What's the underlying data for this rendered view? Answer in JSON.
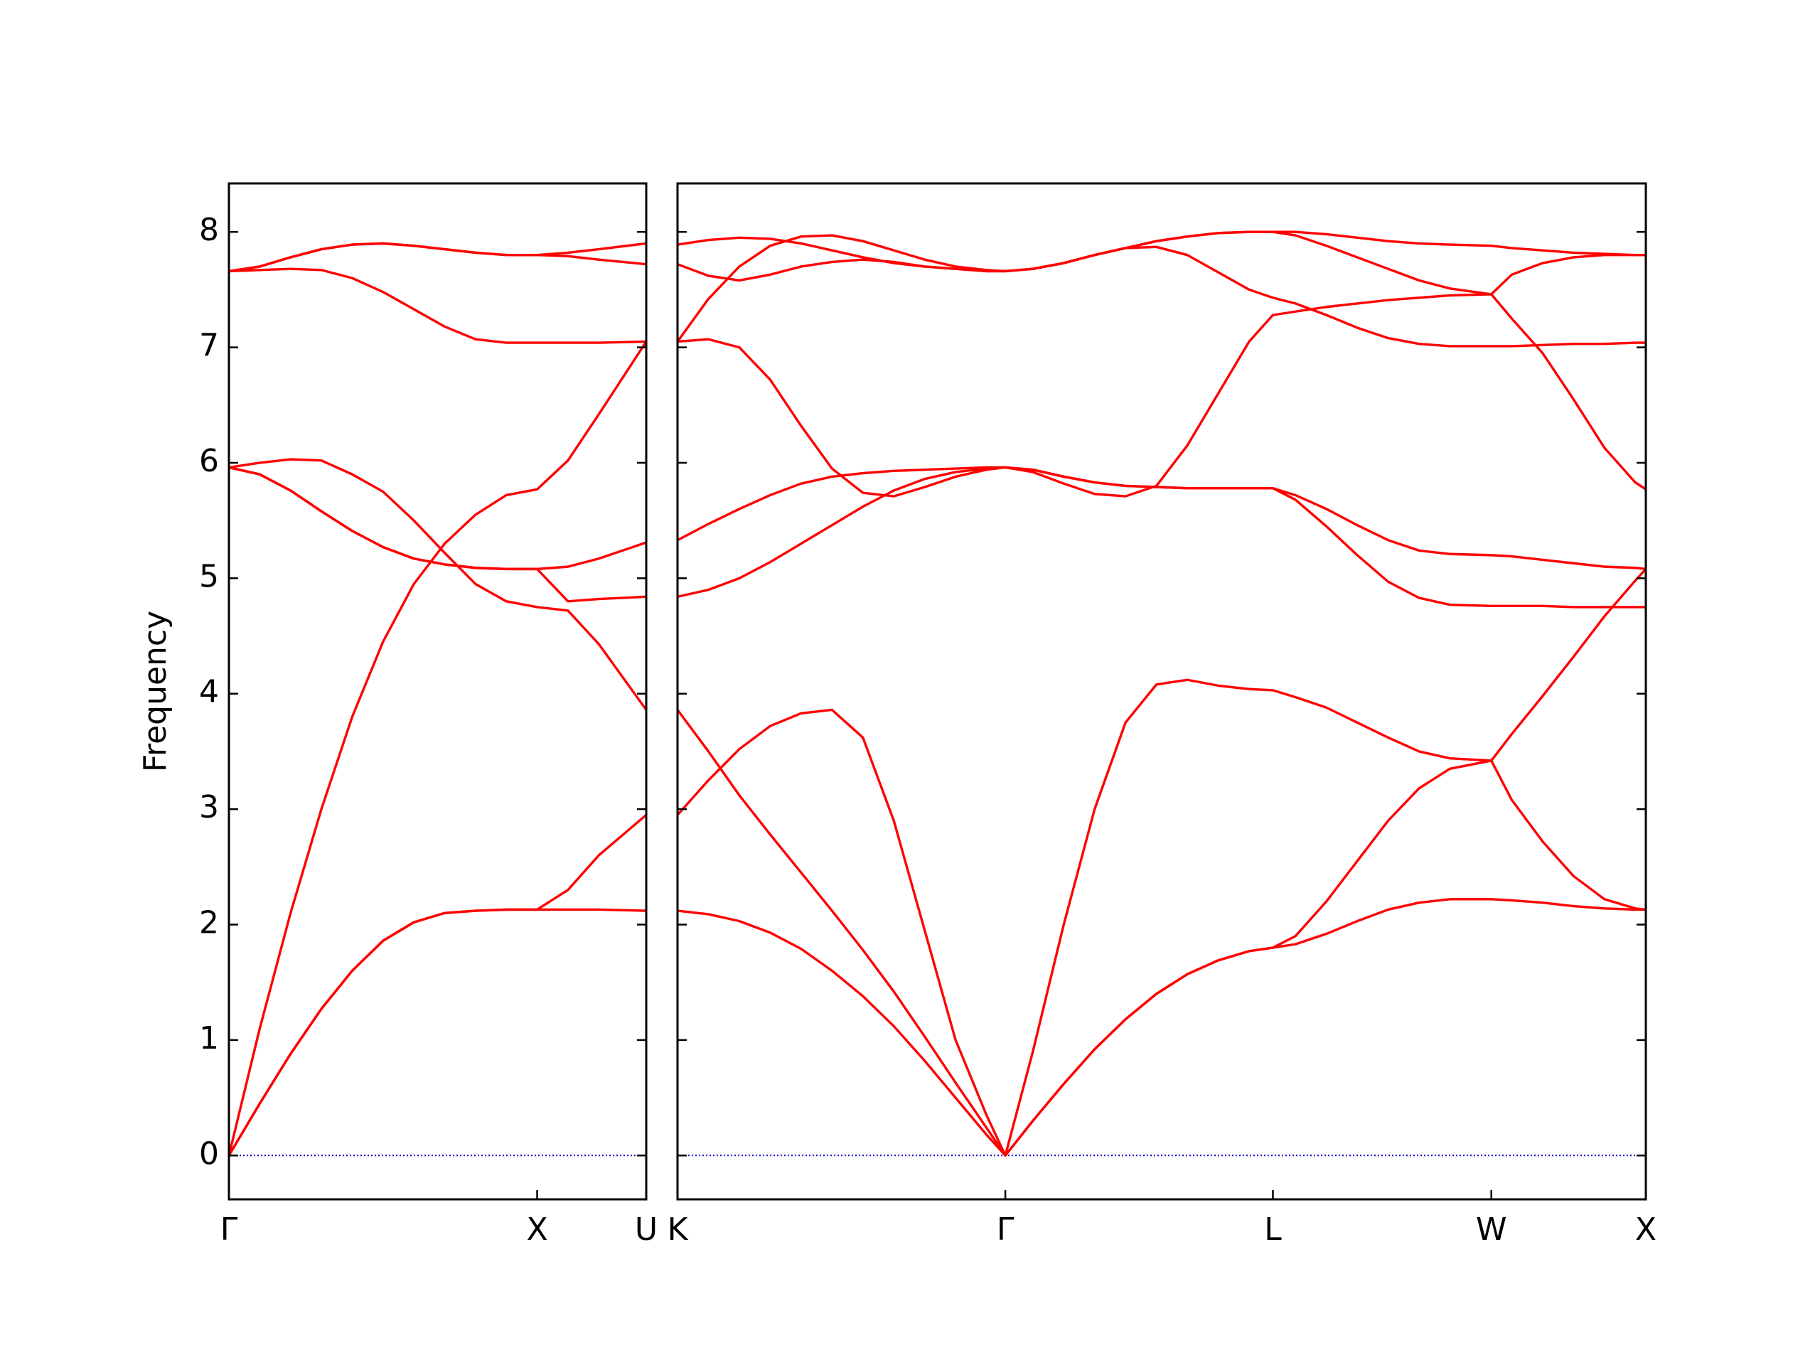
{
  "chart_data": [
    {
      "type": "line",
      "y_label": "Frequency",
      "color": "#ff0000",
      "xlim": [
        0,
        1.354
      ],
      "xticks": [
        {
          "value": 0,
          "label": "Γ"
        },
        {
          "value": 1,
          "label": "X"
        },
        {
          "value": 1.354,
          "label": "U"
        }
      ],
      "ylim": [
        -0.38,
        8.42
      ],
      "yticks": [
        0,
        1,
        2,
        3,
        4,
        5,
        6,
        7,
        8
      ],
      "ytick_labels": true,
      "hline": {
        "value": 0,
        "color": "#0000cc"
      },
      "x": [
        0,
        0.1,
        0.2,
        0.3,
        0.4,
        0.5,
        0.6,
        0.7,
        0.8,
        0.9,
        1.0,
        1.1,
        1.2,
        1.354
      ],
      "series": [
        {
          "values": [
            0,
            0.45,
            0.88,
            1.27,
            1.6,
            1.86,
            2.02,
            2.1,
            2.12,
            2.13,
            2.13,
            2.13,
            2.13,
            2.12
          ]
        },
        {
          "values": [
            0,
            0.45,
            0.88,
            1.27,
            1.6,
            1.86,
            2.02,
            2.1,
            2.12,
            2.13,
            2.13,
            2.3,
            2.6,
            2.95
          ]
        },
        {
          "values": [
            0,
            1.1,
            2.1,
            3.0,
            3.8,
            4.45,
            4.95,
            5.3,
            5.55,
            5.72,
            5.77,
            6.02,
            6.42,
            7.05
          ]
        },
        {
          "values": [
            5.96,
            6.0,
            6.03,
            6.02,
            5.9,
            5.75,
            5.5,
            5.22,
            4.95,
            4.8,
            4.75,
            4.72,
            4.43,
            3.86
          ]
        },
        {
          "values": [
            5.96,
            5.9,
            5.76,
            5.58,
            5.41,
            5.27,
            5.17,
            5.12,
            5.09,
            5.08,
            5.08,
            4.8,
            4.82,
            4.84
          ]
        },
        {
          "values": [
            5.96,
            5.9,
            5.76,
            5.58,
            5.41,
            5.27,
            5.17,
            5.12,
            5.09,
            5.08,
            5.08,
            5.1,
            5.17,
            5.31
          ]
        },
        {
          "values": [
            7.66,
            7.67,
            7.68,
            7.67,
            7.6,
            7.48,
            7.33,
            7.18,
            7.07,
            7.04,
            7.04,
            7.04,
            7.04,
            7.05
          ]
        },
        {
          "values": [
            7.66,
            7.7,
            7.78,
            7.85,
            7.89,
            7.9,
            7.88,
            7.85,
            7.82,
            7.8,
            7.8,
            7.82,
            7.85,
            7.9
          ]
        },
        {
          "values": [
            7.66,
            7.7,
            7.78,
            7.85,
            7.89,
            7.9,
            7.88,
            7.85,
            7.82,
            7.8,
            7.8,
            7.79,
            7.76,
            7.72
          ]
        }
      ]
    },
    {
      "type": "line",
      "color": "#ff0000",
      "xlim": [
        0,
        3.134
      ],
      "xticks": [
        {
          "value": 0,
          "label": "K"
        },
        {
          "value": 1.061,
          "label": "Γ"
        },
        {
          "value": 1.927,
          "label": "L"
        },
        {
          "value": 2.634,
          "label": "W"
        },
        {
          "value": 3.134,
          "label": "X"
        }
      ],
      "ylim": [
        -0.38,
        8.42
      ],
      "yticks": [
        0,
        1,
        2,
        3,
        4,
        5,
        6,
        7,
        8
      ],
      "ytick_labels": false,
      "hline": {
        "value": 0,
        "color": "#0000cc"
      },
      "x": [
        0,
        0.1,
        0.2,
        0.3,
        0.4,
        0.5,
        0.6,
        0.7,
        0.8,
        0.9,
        1.0,
        1.061,
        1.15,
        1.25,
        1.35,
        1.45,
        1.55,
        1.65,
        1.75,
        1.85,
        1.927,
        2.0,
        2.1,
        2.2,
        2.3,
        2.4,
        2.5,
        2.634,
        2.7,
        2.8,
        2.9,
        3.0,
        3.1,
        3.134
      ],
      "series": [
        {
          "values": [
            2.12,
            2.09,
            2.03,
            1.93,
            1.79,
            1.6,
            1.38,
            1.12,
            0.82,
            0.5,
            0.18,
            0,
            0.3,
            0.62,
            0.92,
            1.18,
            1.4,
            1.57,
            1.69,
            1.77,
            1.8,
            1.83,
            1.92,
            2.03,
            2.13,
            2.19,
            2.22,
            2.22,
            2.21,
            2.19,
            2.16,
            2.14,
            2.13,
            2.13
          ]
        },
        {
          "values": [
            3.86,
            3.5,
            3.12,
            2.78,
            2.45,
            2.12,
            1.78,
            1.42,
            1.03,
            0.63,
            0.24,
            0,
            0.3,
            0.62,
            0.92,
            1.18,
            1.4,
            1.57,
            1.69,
            1.77,
            1.8,
            1.9,
            2.2,
            2.55,
            2.9,
            3.18,
            3.35,
            3.42,
            3.08,
            2.72,
            2.42,
            2.22,
            2.14,
            2.13
          ]
        },
        {
          "values": [
            2.95,
            3.25,
            3.52,
            3.72,
            3.83,
            3.86,
            3.62,
            2.9,
            1.95,
            1.0,
            0.35,
            0,
            0.9,
            2.0,
            3.0,
            3.75,
            4.08,
            4.12,
            4.07,
            4.04,
            4.03,
            3.97,
            3.88,
            3.75,
            3.62,
            3.5,
            3.44,
            3.42,
            3.65,
            3.98,
            4.32,
            4.67,
            4.98,
            5.08
          ]
        },
        {
          "values": [
            4.84,
            4.9,
            5.0,
            5.14,
            5.3,
            5.46,
            5.62,
            5.76,
            5.86,
            5.92,
            5.95,
            5.96,
            5.94,
            5.88,
            5.83,
            5.8,
            5.79,
            5.78,
            5.78,
            5.78,
            5.78,
            5.68,
            5.45,
            5.2,
            4.97,
            4.83,
            4.77,
            4.76,
            4.76,
            4.76,
            4.75,
            4.75,
            4.75,
            4.75
          ]
        },
        {
          "values": [
            5.33,
            5.47,
            5.6,
            5.72,
            5.82,
            5.88,
            5.91,
            5.93,
            5.94,
            5.95,
            5.96,
            5.96,
            5.94,
            5.88,
            5.83,
            5.8,
            5.79,
            5.78,
            5.78,
            5.78,
            5.78,
            5.72,
            5.6,
            5.46,
            5.33,
            5.24,
            5.21,
            5.2,
            5.19,
            5.16,
            5.13,
            5.1,
            5.09,
            5.08
          ]
        },
        {
          "values": [
            7.05,
            7.07,
            7.0,
            6.72,
            6.32,
            5.95,
            5.74,
            5.71,
            5.79,
            5.88,
            5.94,
            5.96,
            5.92,
            5.82,
            5.73,
            5.71,
            5.8,
            6.15,
            6.6,
            7.05,
            7.28,
            7.31,
            7.35,
            7.38,
            7.41,
            7.43,
            7.45,
            7.46,
            7.25,
            6.95,
            6.55,
            6.13,
            5.83,
            5.77
          ]
        },
        {
          "values": [
            7.05,
            7.42,
            7.7,
            7.88,
            7.96,
            7.97,
            7.92,
            7.84,
            7.76,
            7.7,
            7.67,
            7.66,
            7.68,
            7.73,
            7.8,
            7.86,
            7.92,
            7.96,
            7.99,
            8.0,
            8.0,
            8.0,
            7.98,
            7.95,
            7.92,
            7.9,
            7.89,
            7.88,
            7.86,
            7.84,
            7.82,
            7.81,
            7.8,
            7.8
          ]
        },
        {
          "values": [
            7.72,
            7.62,
            7.58,
            7.63,
            7.7,
            7.74,
            7.76,
            7.74,
            7.7,
            7.68,
            7.66,
            7.66,
            7.68,
            7.73,
            7.8,
            7.86,
            7.92,
            7.96,
            7.99,
            8.0,
            8.0,
            7.97,
            7.88,
            7.78,
            7.68,
            7.58,
            7.51,
            7.46,
            7.63,
            7.73,
            7.78,
            7.8,
            7.8,
            7.8
          ]
        },
        {
          "values": [
            7.89,
            7.93,
            7.95,
            7.94,
            7.9,
            7.84,
            7.78,
            7.73,
            7.7,
            7.68,
            7.66,
            7.66,
            7.68,
            7.73,
            7.8,
            7.86,
            7.87,
            7.8,
            7.65,
            7.5,
            7.43,
            7.38,
            7.28,
            7.17,
            7.08,
            7.03,
            7.01,
            7.01,
            7.01,
            7.02,
            7.03,
            7.03,
            7.04,
            7.04
          ]
        }
      ]
    }
  ]
}
